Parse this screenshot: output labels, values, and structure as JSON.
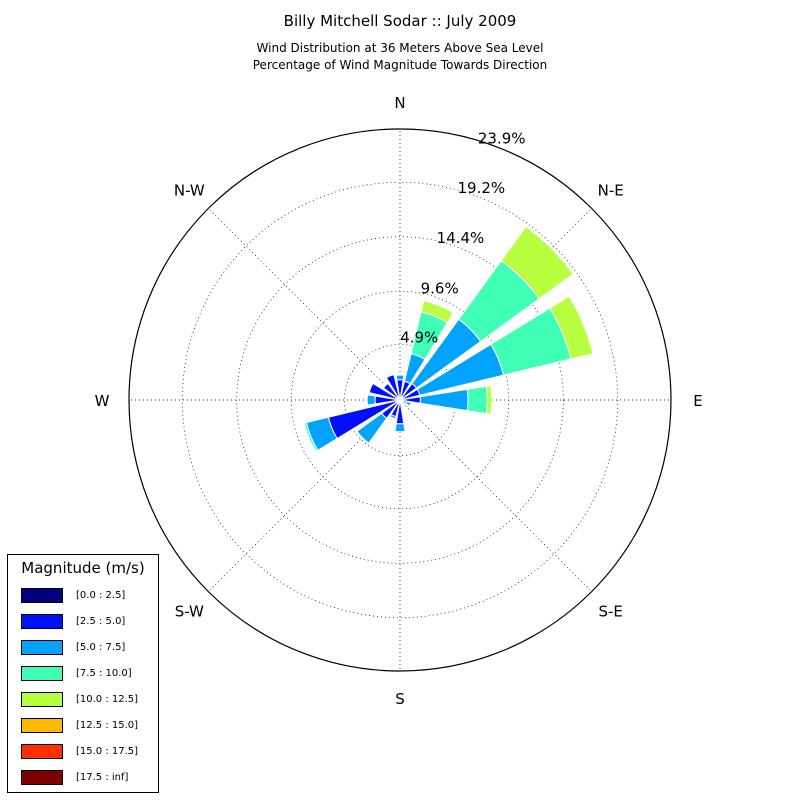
{
  "chart_data": {
    "type": "windrose",
    "title": "Billy Mitchell Sodar :: July 2009",
    "subtitle": [
      "Wind Distribution at 36 Meters Above Sea Level",
      "Percentage of Wind Magnitude Towards Direction"
    ],
    "direction_labels": [
      "N",
      "N-E",
      "E",
      "S-E",
      "S",
      "S-W",
      "W",
      "N-W"
    ],
    "radial_tick_labels": [
      "4.9%",
      "9.6%",
      "14.4%",
      "19.2%",
      "23.9%"
    ],
    "radial_ticks": [
      4.9,
      9.6,
      14.4,
      19.2,
      23.9
    ],
    "rmax": 23.9,
    "grid": true,
    "legend": {
      "title": "Magnitude (m/s)",
      "placement": "lower-left",
      "bins": [
        {
          "label": "[0.0 : 2.5]",
          "color": "#00007f"
        },
        {
          "label": "[2.5 : 5.0]",
          "color": "#0010ff"
        },
        {
          "label": "[5.0 : 7.5]",
          "color": "#00a4ff"
        },
        {
          "label": "[7.5 : 10.0]",
          "color": "#3fffb7"
        },
        {
          "label": "[10.0 : 12.5]",
          "color": "#b7ff3f"
        },
        {
          "label": "[12.5 : 15.0]",
          "color": "#ffb900"
        },
        {
          "label": "[15.0 : 17.5]",
          "color": "#ff3000"
        },
        {
          "label": "[17.5 : inf]",
          "color": "#7f0000"
        }
      ]
    },
    "sectors": [
      {
        "direction": 0,
        "cumulative": [
          0.1,
          1.8,
          2.2,
          2.2,
          2.2,
          2.2,
          2.2,
          2.2
        ]
      },
      {
        "direction": 22.5,
        "cumulative": [
          0.1,
          1.7,
          4.2,
          8.0,
          9.0,
          9.0,
          9.0,
          9.0
        ]
      },
      {
        "direction": 45,
        "cumulative": [
          0.1,
          1.8,
          8.8,
          15.2,
          18.9,
          18.9,
          18.9,
          18.9
        ]
      },
      {
        "direction": 67.5,
        "cumulative": [
          0.1,
          1.8,
          9.4,
          15.5,
          17.5,
          17.6,
          17.6,
          17.6
        ]
      },
      {
        "direction": 90,
        "cumulative": [
          0.1,
          1.8,
          6.0,
          7.7,
          8.1,
          8.1,
          8.1,
          8.1
        ]
      },
      {
        "direction": 112.5,
        "cumulative": [
          0.1,
          0.6,
          1.0,
          1.0,
          1.0,
          1.0,
          1.0,
          1.0
        ]
      },
      {
        "direction": 135,
        "cumulative": [
          0.1,
          0.5,
          0.6,
          0.6,
          0.6,
          0.6,
          0.6,
          0.6
        ]
      },
      {
        "direction": 157.5,
        "cumulative": [
          0.1,
          0.4,
          0.5,
          0.5,
          0.5,
          0.5,
          0.5,
          0.5
        ]
      },
      {
        "direction": 180,
        "cumulative": [
          0.1,
          2.1,
          2.8,
          2.8,
          2.8,
          2.8,
          2.8,
          2.8
        ]
      },
      {
        "direction": 202.5,
        "cumulative": [
          0.1,
          1.5,
          1.7,
          1.7,
          1.7,
          1.7,
          1.7,
          1.7
        ]
      },
      {
        "direction": 225,
        "cumulative": [
          0.1,
          2.0,
          4.7,
          4.8,
          4.8,
          4.8,
          4.8,
          4.8
        ]
      },
      {
        "direction": 247.5,
        "cumulative": [
          0.1,
          6.5,
          8.5,
          8.7,
          8.7,
          8.7,
          8.7,
          8.7
        ]
      },
      {
        "direction": 270,
        "cumulative": [
          0.1,
          2.2,
          2.9,
          2.9,
          2.9,
          2.9,
          2.9,
          2.9
        ]
      },
      {
        "direction": 292.5,
        "cumulative": [
          0.1,
          2.8,
          2.8,
          2.8,
          2.8,
          2.8,
          2.8,
          2.8
        ]
      },
      {
        "direction": 315,
        "cumulative": [
          0.1,
          1.8,
          1.8,
          1.8,
          1.8,
          1.8,
          1.8,
          1.8
        ]
      },
      {
        "direction": 337.5,
        "cumulative": [
          0.1,
          2.3,
          2.3,
          2.3,
          2.3,
          2.3,
          2.3,
          2.3
        ]
      }
    ]
  }
}
